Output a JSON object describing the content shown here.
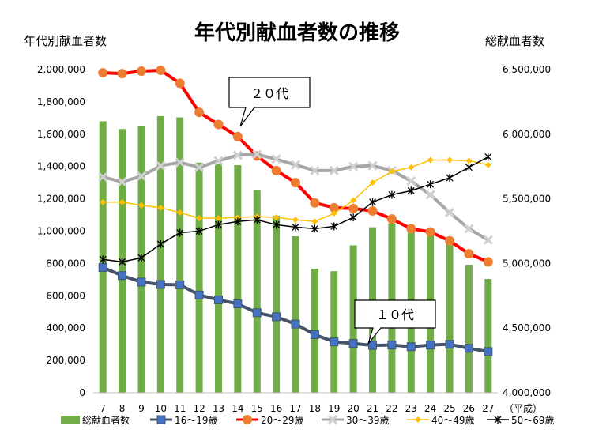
{
  "chart_data": {
    "type": "bar+line",
    "title": "年代別献血者数の推移",
    "ylabel_left": "年代別献血者数",
    "ylabel_right": "総献血者数",
    "xlabel_suffix": "（平成）",
    "categories": [
      "7",
      "8",
      "9",
      "10",
      "11",
      "12",
      "13",
      "14",
      "15",
      "16",
      "17",
      "18",
      "19",
      "20",
      "21",
      "22",
      "23",
      "24",
      "25",
      "26",
      "27"
    ],
    "y_left": {
      "min": 0,
      "max": 2000000,
      "step": 200000,
      "ticks": [
        "0",
        "200,000",
        "400,000",
        "600,000",
        "800,000",
        "1,000,000",
        "1,200,000",
        "1,400,000",
        "1,600,000",
        "1,800,000",
        "2,000,000"
      ]
    },
    "y_right": {
      "min": 4000000,
      "max": 6500000,
      "step": 500000,
      "ticks": [
        "4,000,000",
        "4,500,000",
        "5,000,000",
        "5,500,000",
        "6,000,000",
        "6,500,000"
      ]
    },
    "bars": {
      "name": "総献血者数",
      "axis": "right",
      "color": "#70AD47",
      "values": [
        6100000,
        6040000,
        6060000,
        6140000,
        6130000,
        5780000,
        5770000,
        5760000,
        5570000,
        5370000,
        5210000,
        4960000,
        4940000,
        5140000,
        5280000,
        5310000,
        5270000,
        5250000,
        5160000,
        4990000,
        4880000
      ]
    },
    "series": [
      {
        "name": "16～19歳",
        "color": "#44546A",
        "marker": "square",
        "width": 4,
        "values": [
          775000,
          725000,
          685000,
          670000,
          668000,
          605000,
          575000,
          550000,
          495000,
          470000,
          425000,
          360000,
          315000,
          305000,
          293000,
          295000,
          285000,
          295000,
          300000,
          275000,
          255000
        ]
      },
      {
        "name": "20～29歳",
        "color": "#FF0000",
        "marker": "circle",
        "width": 4,
        "values": [
          1980000,
          1975000,
          1990000,
          1995000,
          1915000,
          1735000,
          1660000,
          1585000,
          1465000,
          1375000,
          1300000,
          1175000,
          1145000,
          1140000,
          1125000,
          1075000,
          1015000,
          995000,
          940000,
          860000,
          810000
        ]
      },
      {
        "name": "30～39歳",
        "color": "#A6A6A6",
        "marker": "x",
        "width": 4,
        "values": [
          1335000,
          1305000,
          1340000,
          1405000,
          1425000,
          1395000,
          1435000,
          1470000,
          1475000,
          1445000,
          1410000,
          1375000,
          1375000,
          1400000,
          1405000,
          1375000,
          1310000,
          1225000,
          1115000,
          1015000,
          945000
        ]
      },
      {
        "name": "40～49歳",
        "color": "#FFC000",
        "marker": "diamond",
        "width": 1.5,
        "values": [
          1180000,
          1180000,
          1160000,
          1145000,
          1115000,
          1080000,
          1080000,
          1085000,
          1090000,
          1085000,
          1070000,
          1060000,
          1110000,
          1190000,
          1300000,
          1370000,
          1395000,
          1440000,
          1440000,
          1435000,
          1410000
        ]
      },
      {
        "name": "50～69歳",
        "color": "#000000",
        "marker": "asterisk",
        "width": 1.5,
        "values": [
          825000,
          810000,
          835000,
          920000,
          990000,
          1000000,
          1040000,
          1060000,
          1070000,
          1040000,
          1025000,
          1015000,
          1030000,
          1085000,
          1180000,
          1225000,
          1250000,
          1290000,
          1330000,
          1395000,
          1460000
        ]
      }
    ],
    "callouts": [
      {
        "text": "２０代",
        "target_series": "20～29歳"
      },
      {
        "text": "１０代",
        "target_series": "16～19歳"
      }
    ],
    "legend_position": "bottom",
    "grid": false
  }
}
